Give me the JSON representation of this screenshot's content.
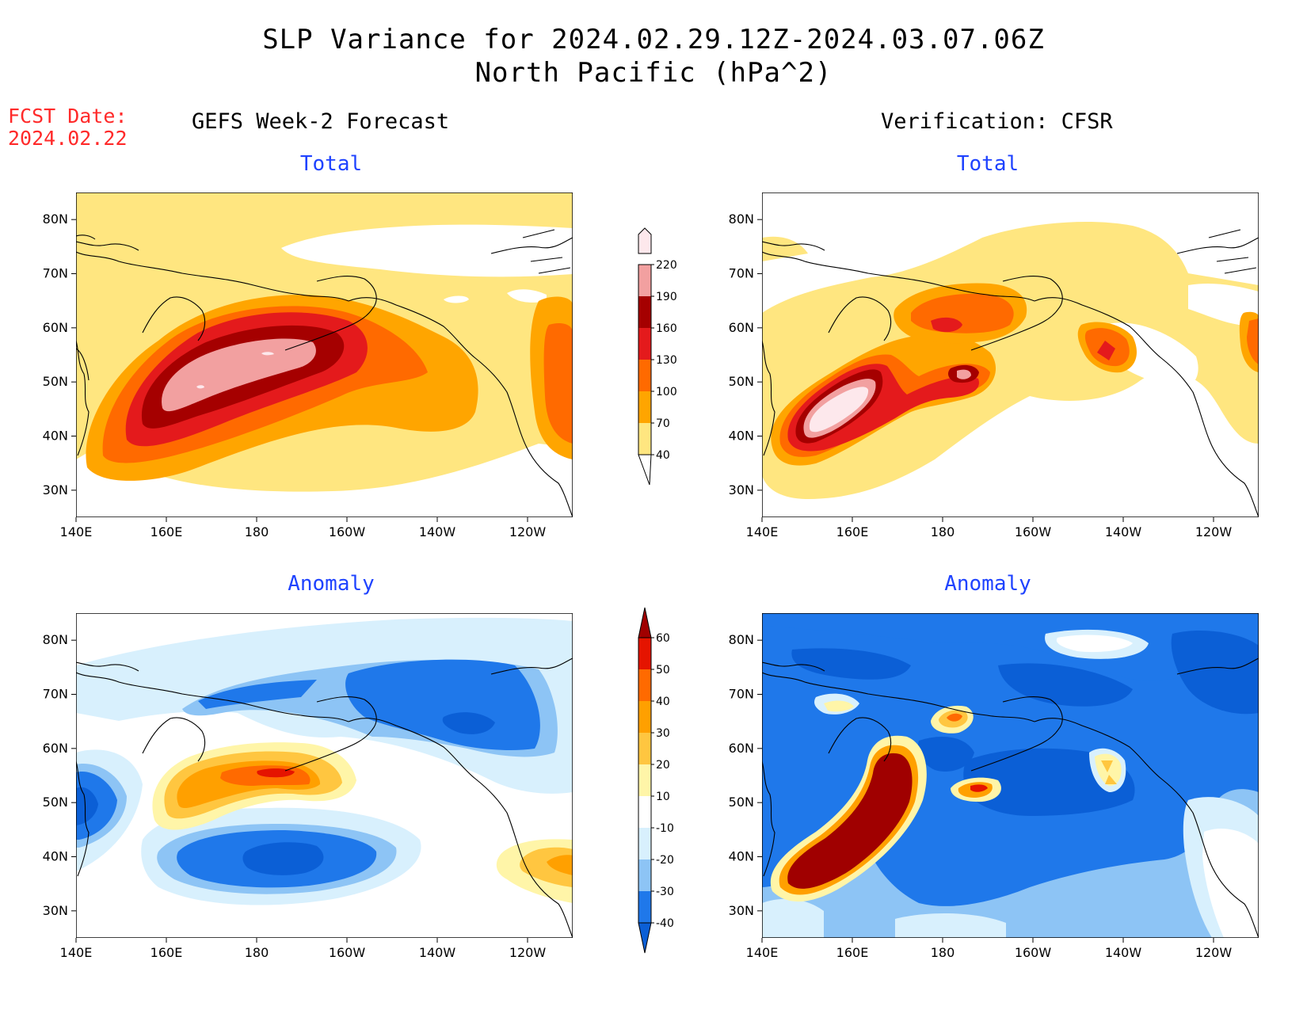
{
  "header": {
    "title_line1": "SLP Variance for 2024.02.29.12Z-2024.03.07.06Z",
    "title_line2": "North Pacific (hPa^2)",
    "fcst_label": "FCST Date:",
    "fcst_date": "2024.02.22",
    "left_column": "GEFS Week-2 Forecast",
    "right_column": "Verification: CFSR"
  },
  "panels": [
    {
      "id": "gefs-total",
      "title": "Total"
    },
    {
      "id": "cfsr-total",
      "title": "Total"
    },
    {
      "id": "gefs-anomaly",
      "title": "Anomaly"
    },
    {
      "id": "cfsr-anomaly",
      "title": "Anomaly"
    }
  ],
  "axes": {
    "lat_labels": [
      "80N",
      "70N",
      "60N",
      "50N",
      "40N",
      "30N"
    ],
    "lat_values": [
      80,
      70,
      60,
      50,
      40,
      30
    ],
    "lat_range": [
      25,
      85
    ],
    "lon_labels": [
      "140E",
      "160E",
      "180",
      "160W",
      "140W",
      "120W"
    ],
    "lon_values": [
      140,
      160,
      180,
      200,
      220,
      240
    ],
    "lon_range": [
      140,
      250
    ]
  },
  "colorbars": {
    "total": {
      "levels": [
        "40",
        "70",
        "100",
        "130",
        "160",
        "190",
        "220"
      ],
      "colors": [
        "#ffe680",
        "#ffa500",
        "#ff6a00",
        "#e41a1c",
        "#a50000",
        "#f2a0a0",
        "#fde8ec"
      ]
    },
    "anomaly": {
      "levels": [
        "-40",
        "-30",
        "-20",
        "-10",
        "10",
        "20",
        "30",
        "40",
        "50",
        "60"
      ],
      "colors": [
        "#0b5fd6",
        "#1f78ea",
        "#8dc4f5",
        "#d8f0fd",
        "#ffffff",
        "#fff5a8",
        "#ffc640",
        "#ffa000",
        "#ff6a00",
        "#e51400",
        "#a00000"
      ]
    }
  },
  "chart_data": {
    "type": "map",
    "title": "SLP Variance for 2024.02.29.12Z-2024.03.07.06Z",
    "subtitle": "North Pacific (hPa^2)",
    "units": "hPa^2",
    "region": {
      "lon_range": [
        140,
        250
      ],
      "lat_range": [
        25,
        85
      ]
    },
    "panels": [
      "GEFS Week-2 Forecast Total",
      "Verification: CFSR Total",
      "GEFS Week-2 Forecast Anomaly",
      "Verification: CFSR Anomaly"
    ],
    "total_contour_levels": [
      40,
      70,
      100,
      130,
      160,
      190,
      220
    ],
    "anomaly_contour_levels": [
      -40,
      -30,
      -20,
      -10,
      10,
      20,
      30,
      40,
      50,
      60
    ]
  }
}
